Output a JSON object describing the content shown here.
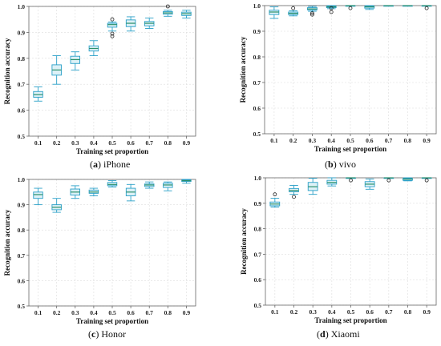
{
  "figure": {
    "panels": [
      {
        "letter": "a",
        "caption_name": "iPhone"
      },
      {
        "letter": "b",
        "caption_name": "vivo"
      },
      {
        "letter": "c",
        "caption_name": "Honor"
      },
      {
        "letter": "d",
        "caption_name": "Xiaomi"
      }
    ]
  },
  "colors": {
    "box_edge": "#2aa0c8",
    "box_fill": "#ddf1f7",
    "median": "#2a8f6a",
    "grid": "#dddddd",
    "axis": "#666666",
    "outlier": "#222222"
  },
  "chart_data": [
    {
      "type": "box",
      "title": "",
      "xlabel": "Training set proportion",
      "ylabel": "Recognition accuracy",
      "categories": [
        "0.1",
        "0.2",
        "0.3",
        "0.4",
        "0.5",
        "0.6",
        "0.7",
        "0.8",
        "0.9"
      ],
      "ylim": [
        0.5,
        1.0
      ],
      "yticks": [
        "0.5",
        "0.6",
        "0.7",
        "0.8",
        "0.9",
        "1.0"
      ],
      "grid": true,
      "boxes": [
        {
          "min": 0.635,
          "q1": 0.65,
          "median": 0.66,
          "q3": 0.672,
          "max": 0.69,
          "outliers": []
        },
        {
          "min": 0.7,
          "q1": 0.735,
          "median": 0.755,
          "q3": 0.775,
          "max": 0.81,
          "outliers": []
        },
        {
          "min": 0.755,
          "q1": 0.78,
          "median": 0.795,
          "q3": 0.808,
          "max": 0.825,
          "outliers": []
        },
        {
          "min": 0.81,
          "q1": 0.828,
          "median": 0.838,
          "q3": 0.848,
          "max": 0.868,
          "outliers": []
        },
        {
          "min": 0.905,
          "q1": 0.92,
          "median": 0.93,
          "q3": 0.935,
          "max": 0.94,
          "outliers": [
            0.95,
            0.895,
            0.885
          ]
        },
        {
          "min": 0.905,
          "q1": 0.922,
          "median": 0.935,
          "q3": 0.948,
          "max": 0.96,
          "outliers": []
        },
        {
          "min": 0.915,
          "q1": 0.925,
          "median": 0.935,
          "q3": 0.942,
          "max": 0.955,
          "outliers": []
        },
        {
          "min": 0.962,
          "q1": 0.97,
          "median": 0.975,
          "q3": 0.98,
          "max": 0.985,
          "outliers": [
            1.0
          ]
        },
        {
          "min": 0.955,
          "q1": 0.965,
          "median": 0.972,
          "q3": 0.978,
          "max": 0.985,
          "outliers": []
        }
      ]
    },
    {
      "type": "box",
      "title": "",
      "xlabel": "Training set proportion",
      "ylabel": "Recognition accuracy",
      "categories": [
        "0.1",
        "0.2",
        "0.3",
        "0.4",
        "0.5",
        "0.6",
        "0.7",
        "0.8",
        "0.9"
      ],
      "ylim": [
        0.5,
        1.0
      ],
      "yticks": [
        "0.5",
        "0.6",
        "0.7",
        "0.8",
        "0.9",
        "1.0"
      ],
      "grid": true,
      "boxes": [
        {
          "min": 0.95,
          "q1": 0.965,
          "median": 0.975,
          "q3": 0.982,
          "max": 0.995,
          "outliers": []
        },
        {
          "min": 0.96,
          "q1": 0.965,
          "median": 0.97,
          "q3": 0.975,
          "max": 0.98,
          "outliers": [
            0.99
          ]
        },
        {
          "min": 0.978,
          "q1": 0.983,
          "median": 0.987,
          "q3": 0.992,
          "max": 0.997,
          "outliers": [
            0.97,
            0.965
          ]
        },
        {
          "min": 0.988,
          "q1": 0.992,
          "median": 0.995,
          "q3": 0.998,
          "max": 1.0,
          "outliers": [
            0.99,
            0.975
          ]
        },
        {
          "min": 0.998,
          "q1": 1.0,
          "median": 1.0,
          "q3": 1.0,
          "max": 1.0,
          "outliers": [
            0.99
          ]
        },
        {
          "min": 0.985,
          "q1": 0.99,
          "median": 0.995,
          "q3": 0.998,
          "max": 1.0,
          "outliers": []
        },
        {
          "min": 1.0,
          "q1": 1.0,
          "median": 1.0,
          "q3": 1.0,
          "max": 1.0,
          "outliers": []
        },
        {
          "min": 1.0,
          "q1": 1.0,
          "median": 1.0,
          "q3": 1.0,
          "max": 1.0,
          "outliers": []
        },
        {
          "min": 1.0,
          "q1": 1.0,
          "median": 1.0,
          "q3": 1.0,
          "max": 1.0,
          "outliers": [
            0.99
          ]
        }
      ]
    },
    {
      "type": "box",
      "title": "",
      "xlabel": "Training set proportion",
      "ylabel": "Recognition accuracy",
      "categories": [
        "0.1",
        "0.2",
        "0.3",
        "0.4",
        "0.5",
        "0.6",
        "0.7",
        "0.8",
        "0.9"
      ],
      "ylim": [
        0.5,
        1.0
      ],
      "yticks": [
        "0.5",
        "0.6",
        "0.7",
        "0.8",
        "0.9",
        "1.0"
      ],
      "grid": true,
      "boxes": [
        {
          "min": 0.9,
          "q1": 0.925,
          "median": 0.94,
          "q3": 0.95,
          "max": 0.965,
          "outliers": []
        },
        {
          "min": 0.87,
          "q1": 0.88,
          "median": 0.89,
          "q3": 0.9,
          "max": 0.925,
          "outliers": []
        },
        {
          "min": 0.925,
          "q1": 0.938,
          "median": 0.95,
          "q3": 0.962,
          "max": 0.975,
          "outliers": []
        },
        {
          "min": 0.935,
          "q1": 0.945,
          "median": 0.95,
          "q3": 0.958,
          "max": 0.965,
          "outliers": []
        },
        {
          "min": 0.97,
          "q1": 0.975,
          "median": 0.98,
          "q3": 0.988,
          "max": 0.995,
          "outliers": []
        },
        {
          "min": 0.915,
          "q1": 0.935,
          "median": 0.95,
          "q3": 0.965,
          "max": 0.98,
          "outliers": []
        },
        {
          "min": 0.965,
          "q1": 0.972,
          "median": 0.978,
          "q3": 0.982,
          "max": 0.99,
          "outliers": []
        },
        {
          "min": 0.955,
          "q1": 0.968,
          "median": 0.978,
          "q3": 0.985,
          "max": 0.99,
          "outliers": []
        },
        {
          "min": 0.985,
          "q1": 0.992,
          "median": 0.995,
          "q3": 0.998,
          "max": 1.0,
          "outliers": []
        }
      ]
    },
    {
      "type": "box",
      "title": "",
      "xlabel": "Training set proportion",
      "ylabel": "Recognition accuracy",
      "categories": [
        "0.1",
        "0.2",
        "0.3",
        "0.4",
        "0.5",
        "0.6",
        "0.7",
        "0.8",
        "0.9"
      ],
      "ylim": [
        0.5,
        1.0
      ],
      "yticks": [
        "0.5",
        "0.6",
        "0.7",
        "0.8",
        "0.9",
        "1.0"
      ],
      "grid": true,
      "boxes": [
        {
          "min": 0.885,
          "q1": 0.89,
          "median": 0.897,
          "q3": 0.905,
          "max": 0.92,
          "outliers": [
            0.935
          ]
        },
        {
          "min": 0.935,
          "q1": 0.945,
          "median": 0.95,
          "q3": 0.958,
          "max": 0.97,
          "outliers": [
            0.925
          ]
        },
        {
          "min": 0.935,
          "q1": 0.95,
          "median": 0.965,
          "q3": 0.982,
          "max": 0.998,
          "outliers": []
        },
        {
          "min": 0.968,
          "q1": 0.975,
          "median": 0.982,
          "q3": 0.99,
          "max": 1.0,
          "outliers": []
        },
        {
          "min": 1.0,
          "q1": 1.0,
          "median": 1.0,
          "q3": 1.0,
          "max": 1.0,
          "outliers": [
            0.99
          ]
        },
        {
          "min": 0.955,
          "q1": 0.965,
          "median": 0.975,
          "q3": 0.985,
          "max": 0.995,
          "outliers": []
        },
        {
          "min": 1.0,
          "q1": 1.0,
          "median": 1.0,
          "q3": 1.0,
          "max": 1.0,
          "outliers": [
            0.99
          ]
        },
        {
          "min": 0.988,
          "q1": 0.99,
          "median": 0.995,
          "q3": 0.998,
          "max": 1.0,
          "outliers": []
        },
        {
          "min": 1.0,
          "q1": 1.0,
          "median": 1.0,
          "q3": 1.0,
          "max": 1.0,
          "outliers": [
            0.99
          ]
        }
      ]
    }
  ]
}
